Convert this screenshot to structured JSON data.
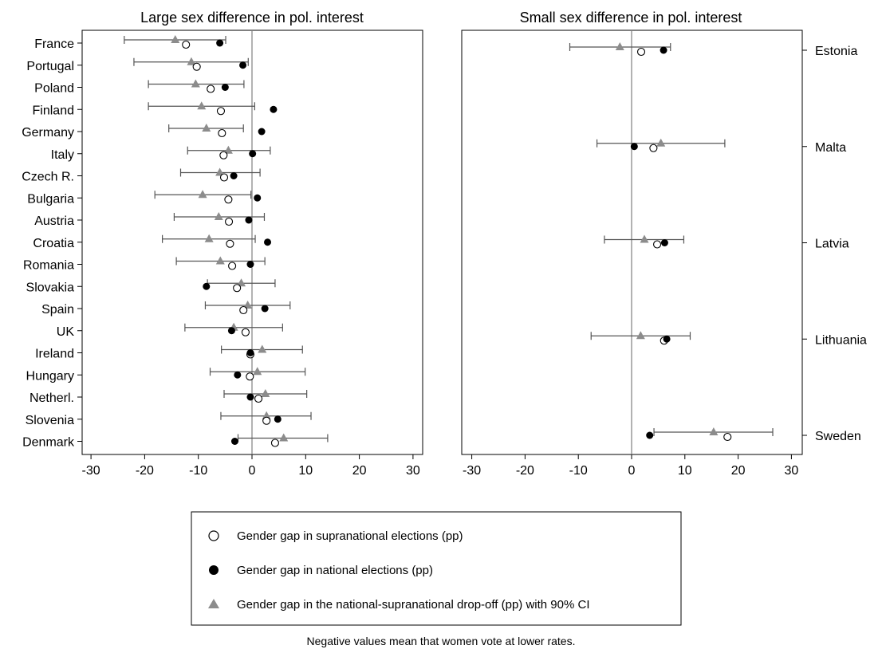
{
  "chart_data": [
    {
      "type": "scatter",
      "title": "Large sex difference in pol. interest",
      "categories": [
        "France",
        "Portugal",
        "Poland",
        "Finland",
        "Germany",
        "Italy",
        "Czech R.",
        "Bulgaria",
        "Austria",
        "Croatia",
        "Romania",
        "Slovakia",
        "Spain",
        "UK",
        "Ireland",
        "Hungary",
        "Netherl.",
        "Slovenia",
        "Denmark"
      ],
      "xlim": [
        -30,
        30
      ],
      "xticks": [
        "-30",
        "-20",
        "-10",
        "0",
        "10",
        "20",
        "30"
      ],
      "reference_line_x": 0,
      "series": [
        {
          "name": "Gender gap in supranational elections (pp)",
          "values": [
            -12.3,
            -10.3,
            -7.7,
            -5.8,
            -5.6,
            -5.3,
            -5.2,
            -4.4,
            -4.3,
            -4.1,
            -3.7,
            -2.8,
            -1.6,
            -1.2,
            -0.3,
            -0.4,
            1.2,
            2.7,
            4.3
          ]
        },
        {
          "name": "Gender gap in national elections (pp)",
          "values": [
            -6.0,
            -1.7,
            -5.0,
            4.0,
            1.8,
            0.1,
            -3.4,
            1.0,
            -0.6,
            2.9,
            -0.3,
            -8.5,
            2.4,
            -3.8,
            -0.3,
            -2.7,
            -0.3,
            4.8,
            -3.2
          ]
        },
        {
          "name": "Gender gap in the national-supranational drop-off (pp) with 90% CI",
          "values": [
            -14.3,
            -11.3,
            -10.5,
            -9.4,
            -8.5,
            -4.4,
            -6.0,
            -9.2,
            -6.2,
            -8.0,
            -5.9,
            -2.0,
            -0.8,
            -3.4,
            1.9,
            1.0,
            2.5,
            2.7,
            5.9
          ],
          "ci_low": [
            -23.8,
            -22.0,
            -19.3,
            -19.3,
            -15.5,
            -12.0,
            -13.3,
            -18.1,
            -14.5,
            -16.7,
            -14.1,
            -8.3,
            -8.7,
            -12.5,
            -5.7,
            -7.8,
            -5.2,
            -5.8,
            -2.6
          ],
          "ci_high": [
            -4.9,
            -0.7,
            -1.5,
            0.5,
            -1.6,
            3.4,
            1.5,
            -0.2,
            2.3,
            0.6,
            2.4,
            4.3,
            7.1,
            5.7,
            9.4,
            9.9,
            10.2,
            11.0,
            14.1
          ]
        }
      ]
    },
    {
      "type": "scatter",
      "title": "Small sex difference in pol. interest",
      "categories": [
        "Estonia",
        "Malta",
        "Latvia",
        "Lithuania",
        "Sweden"
      ],
      "xlim": [
        -30,
        30
      ],
      "xticks": [
        "-30",
        "-20",
        "-10",
        "0",
        "10",
        "20",
        "30"
      ],
      "reference_line_x": 0,
      "series": [
        {
          "name": "Gender gap in supranational elections (pp)",
          "values": [
            1.8,
            4.1,
            4.8,
            6.1,
            18.0
          ]
        },
        {
          "name": "Gender gap in national elections (pp)",
          "values": [
            6.0,
            0.5,
            6.2,
            6.6,
            3.4
          ]
        },
        {
          "name": "Gender gap in the national-supranational drop-off (pp) with 90% CI",
          "values": [
            -2.2,
            5.5,
            2.4,
            1.7,
            15.4
          ],
          "ci_low": [
            -11.6,
            -6.5,
            -5.1,
            -7.6,
            4.2
          ],
          "ci_high": [
            7.3,
            17.5,
            9.8,
            11.0,
            26.5
          ]
        }
      ]
    }
  ],
  "legend": {
    "items": [
      {
        "symbol": "open-circle",
        "label": "Gender gap in supranational elections (pp)"
      },
      {
        "symbol": "filled-circle",
        "label": "Gender gap in national elections (pp)"
      },
      {
        "symbol": "gray-triangle",
        "label": "Gender gap in the national-supranational drop-off (pp) with 90% CI"
      }
    ]
  },
  "note": "Negative values mean that women vote at lower rates.",
  "colors": {
    "supranational": "#ffffff",
    "national": "#000000",
    "dropoff": "#8c8c8c",
    "ci": "#555555",
    "axis": "#000000",
    "refline": "#808080"
  }
}
